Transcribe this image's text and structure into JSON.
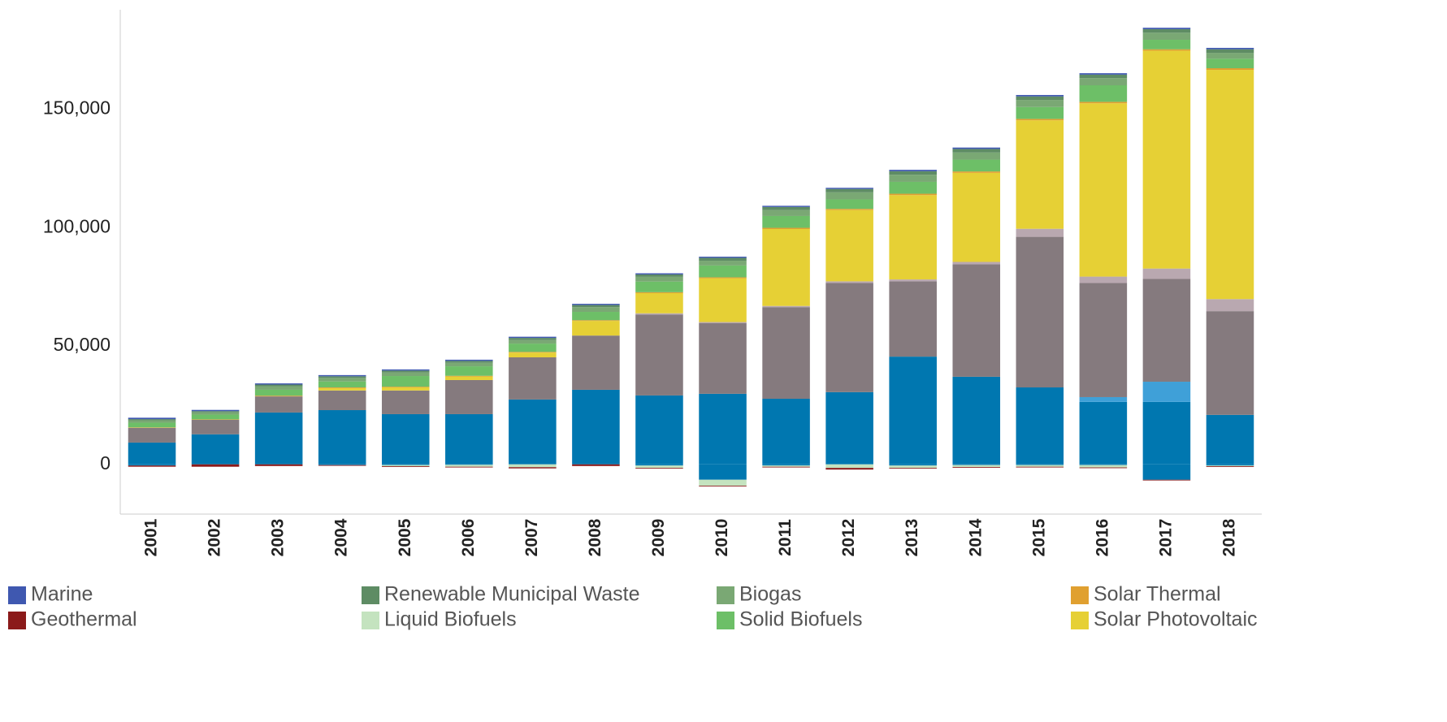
{
  "chart_data": {
    "type": "stacked_bar",
    "categories": [
      "2001",
      "2002",
      "2003",
      "2004",
      "2005",
      "2006",
      "2007",
      "2008",
      "2009",
      "2010",
      "2011",
      "2012",
      "2013",
      "2014",
      "2015",
      "2016",
      "2017",
      "2018"
    ],
    "ylim": [
      -21000,
      192000
    ],
    "yticks": [
      0,
      {
        "value": 50000,
        "label": "50,000"
      },
      {
        "value": 100000,
        "label": "100,000"
      },
      {
        "value": 150000,
        "label": "150,000"
      }
    ],
    "grid": false,
    "series": [
      {
        "name": "Marine",
        "color": "#3f58b0",
        "values": [
          600,
          500,
          500,
          500,
          500,
          500,
          500,
          500,
          500,
          500,
          500,
          500,
          600,
          600,
          600,
          600,
          600,
          600
        ]
      },
      {
        "name": "Geothermal",
        "color": "#8b1a1a",
        "values": [
          -500,
          -1000,
          -700,
          -300,
          -300,
          -300,
          -500,
          -700,
          -300,
          -300,
          -300,
          -700,
          -300,
          -300,
          -300,
          -300,
          -300,
          -300
        ]
      },
      {
        "name": "Renewable Municipal Waste",
        "color": "#5e8c64",
        "values": [
          500,
          500,
          700,
          700,
          800,
          800,
          900,
          900,
          1000,
          1200,
          1300,
          1400,
          1500,
          1500,
          1500,
          1500,
          1500,
          1500
        ]
      },
      {
        "name": "Liquid Biofuels",
        "color": "#c4e3bf",
        "values": [
          0,
          0,
          0,
          0,
          -500,
          -800,
          -1200,
          0,
          -1000,
          -2500,
          -500,
          -1500,
          -1000,
          -800,
          -700,
          -1000,
          0,
          -300
        ]
      },
      {
        "name": "Biogas",
        "color": "#7aa874",
        "values": [
          1000,
          1000,
          1500,
          1500,
          1500,
          1500,
          1500,
          2000,
          2000,
          2000,
          2500,
          3000,
          3000,
          3000,
          3000,
          3000,
          3000,
          2500
        ]
      },
      {
        "name": "Solid Biofuels",
        "color": "#6dbf67",
        "values": [
          2000,
          2000,
          2500,
          2500,
          4500,
          4000,
          3500,
          3500,
          4500,
          5000,
          5000,
          4000,
          5000,
          5000,
          5000,
          7000,
          4000,
          4000
        ]
      },
      {
        "name": "Solar Thermal",
        "color": "#e0a030",
        "values": [
          200,
          200,
          300,
          300,
          300,
          300,
          300,
          300,
          400,
          400,
          500,
          500,
          600,
          600,
          600,
          600,
          600,
          700
        ]
      },
      {
        "name": "Solar Photovoltaic",
        "color": "#e6d035",
        "values": [
          0,
          0,
          0,
          1000,
          1300,
          1500,
          2000,
          6200,
          8500,
          18500,
          32500,
          30100,
          35600,
          37600,
          45800,
          73200,
          92000,
          96800
        ]
      },
      {
        "name": null,
        "color": "#b9a8b0",
        "values": [
          0,
          0,
          0,
          0,
          0,
          0,
          0,
          0,
          500,
          500,
          500,
          700,
          800,
          1000,
          3400,
          2700,
          4400,
          5100
        ]
      },
      {
        "name": null,
        "color": "#857a7e",
        "values": [
          6200,
          6100,
          6800,
          8300,
          10000,
          14400,
          17800,
          22900,
          34200,
          29800,
          38700,
          46100,
          31800,
          47500,
          63600,
          48200,
          43400,
          43800
        ]
      },
      {
        "name": null,
        "color": "#3fa0d8",
        "values": [
          0,
          0,
          0,
          0,
          0,
          0,
          0,
          0,
          0,
          0,
          0,
          0,
          0,
          0,
          0,
          2000,
          8500,
          0
        ]
      },
      {
        "name": null,
        "color": "#0077b0",
        "values": [
          9200,
          12700,
          21900,
          22900,
          21200,
          21200,
          27400,
          31500,
          29100,
          29800,
          27700,
          30500,
          45500,
          37000,
          32500,
          26400,
          26400,
          20900
        ]
      },
      {
        "name": null,
        "color": "#0077b0",
        "values": [
          -500,
          0,
          0,
          -300,
          -300,
          -200,
          0,
          0,
          -500,
          -6500,
          -500,
          0,
          -500,
          -300,
          -300,
          -300,
          -6500,
          -500
        ]
      }
    ]
  }
}
